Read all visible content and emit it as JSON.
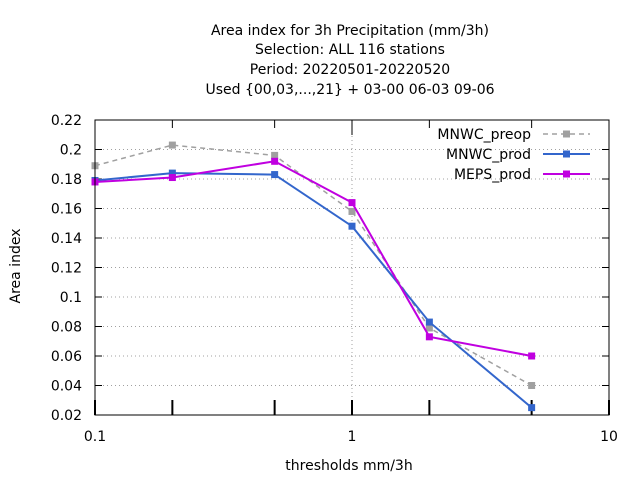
{
  "chart_data": {
    "type": "line",
    "title_lines": [
      "Area index  for 3h Precipitation (mm/3h)",
      "Selection: ALL    116 stations",
      "Period: 20220501-20220520",
      "Used {00,03,...,21} + 03-00 06-03 09-06"
    ],
    "xlabel": "thresholds mm/3h",
    "ylabel": "Area index",
    "xscale": "log",
    "xlim": [
      0.1,
      10
    ],
    "ylim": [
      0.02,
      0.22
    ],
    "x_ticks": [
      {
        "value": 0.1,
        "label": "0.1"
      },
      {
        "value": 1,
        "label": "1"
      },
      {
        "value": 10,
        "label": "10"
      }
    ],
    "y_ticks": [
      {
        "value": 0.02,
        "label": "0.02"
      },
      {
        "value": 0.04,
        "label": "0.04"
      },
      {
        "value": 0.06,
        "label": "0.06"
      },
      {
        "value": 0.08,
        "label": "0.08"
      },
      {
        "value": 0.1,
        "label": "0.1"
      },
      {
        "value": 0.12,
        "label": "0.12"
      },
      {
        "value": 0.14,
        "label": "0.14"
      },
      {
        "value": 0.16,
        "label": "0.16"
      },
      {
        "value": 0.18,
        "label": "0.18"
      },
      {
        "value": 0.2,
        "label": "0.2"
      },
      {
        "value": 0.22,
        "label": "0.22"
      }
    ],
    "grid": true,
    "legend_position": "top-right",
    "series": [
      {
        "name": "MNWC_preop",
        "color": "#a0a0a0",
        "dashed": true,
        "x": [
          0.1,
          0.2,
          0.5,
          1,
          2,
          5
        ],
        "y": [
          0.189,
          0.203,
          0.196,
          0.158,
          0.079,
          0.04
        ]
      },
      {
        "name": "MNWC_prod",
        "color": "#3366cc",
        "dashed": false,
        "x": [
          0.1,
          0.2,
          0.5,
          1,
          2,
          5
        ],
        "y": [
          0.179,
          0.184,
          0.183,
          0.148,
          0.083,
          0.025
        ]
      },
      {
        "name": "MEPS_prod",
        "color": "#c000e0",
        "dashed": false,
        "x": [
          0.1,
          0.2,
          0.5,
          1,
          2,
          5
        ],
        "y": [
          0.178,
          0.181,
          0.192,
          0.164,
          0.073,
          0.06
        ]
      }
    ]
  }
}
